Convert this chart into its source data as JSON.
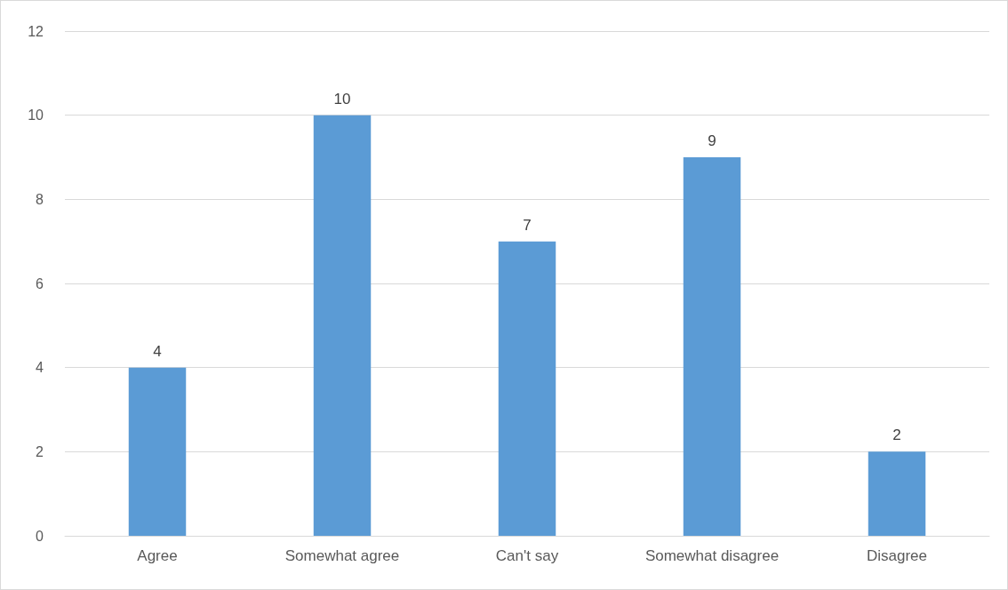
{
  "chart_data": {
    "type": "bar",
    "categories": [
      "Agree",
      "Somewhat agree",
      "Can't say",
      "Somewhat disagree",
      "Disagree"
    ],
    "values": [
      4,
      10,
      7,
      9,
      2
    ],
    "color": "#5b9bd5",
    "ylim": [
      0,
      12
    ],
    "yticks": [
      0,
      2,
      4,
      6,
      8,
      10,
      12
    ],
    "grid": "y",
    "data_labels": true
  }
}
